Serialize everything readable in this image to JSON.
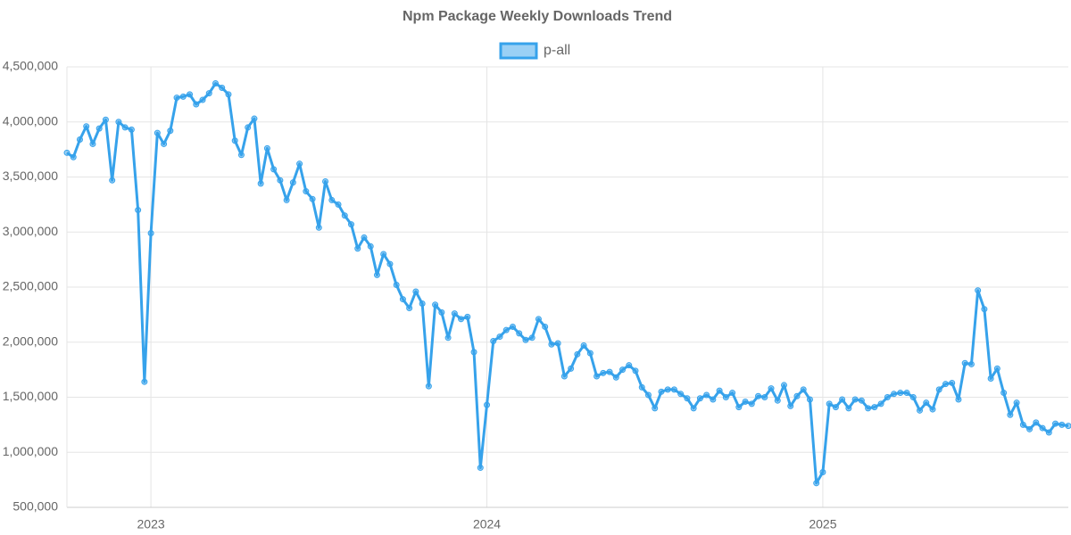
{
  "chart_data": {
    "type": "line",
    "title": "Npm Package Weekly Downloads Trend",
    "categories": [
      null,
      null,
      null,
      null,
      null,
      null,
      null,
      null,
      null,
      null,
      null,
      null,
      null,
      "2023",
      null,
      null,
      null,
      null,
      null,
      null,
      null,
      null,
      null,
      null,
      null,
      null,
      null,
      null,
      null,
      null,
      null,
      null,
      null,
      null,
      null,
      null,
      null,
      null,
      null,
      null,
      null,
      null,
      null,
      null,
      null,
      null,
      null,
      null,
      null,
      null,
      null,
      null,
      null,
      null,
      null,
      null,
      null,
      null,
      null,
      null,
      null,
      null,
      null,
      null,
      null,
      "2024",
      null,
      null,
      null,
      null,
      null,
      null,
      null,
      null,
      null,
      null,
      null,
      null,
      null,
      null,
      null,
      null,
      null,
      null,
      null,
      null,
      null,
      null,
      null,
      null,
      null,
      null,
      null,
      null,
      null,
      null,
      null,
      null,
      null,
      null,
      null,
      null,
      null,
      null,
      null,
      null,
      null,
      null,
      null,
      null,
      null,
      null,
      null,
      null,
      null,
      null,
      null,
      "2025",
      null,
      null,
      null,
      null,
      null,
      null,
      null,
      null,
      null,
      null,
      null,
      null,
      null,
      null,
      null,
      null,
      null,
      null,
      null,
      null,
      null,
      null,
      null,
      null,
      null,
      null,
      null,
      null,
      null,
      null,
      null,
      null,
      null,
      null,
      null,
      null,
      null,
      null
    ],
    "series": [
      {
        "name": "p-all",
        "color": "#36a2eb",
        "values": [
          3720000,
          3680000,
          3840000,
          3960000,
          3800000,
          3940000,
          4020000,
          3470000,
          4000000,
          3950000,
          3930000,
          3200000,
          1640000,
          2990000,
          3900000,
          3800000,
          3920000,
          4220000,
          4230000,
          4250000,
          4160000,
          4200000,
          4260000,
          4350000,
          4310000,
          4250000,
          3830000,
          3700000,
          3950000,
          4030000,
          3440000,
          3760000,
          3570000,
          3470000,
          3290000,
          3450000,
          3620000,
          3370000,
          3300000,
          3040000,
          3460000,
          3290000,
          3250000,
          3150000,
          3070000,
          2850000,
          2950000,
          2870000,
          2610000,
          2800000,
          2710000,
          2520000,
          2390000,
          2310000,
          2460000,
          2350000,
          1600000,
          2340000,
          2270000,
          2040000,
          2260000,
          2210000,
          2230000,
          1910000,
          860000,
          1430000,
          2010000,
          2050000,
          2110000,
          2140000,
          2080000,
          2020000,
          2040000,
          2210000,
          2140000,
          1980000,
          1990000,
          1690000,
          1760000,
          1890000,
          1970000,
          1900000,
          1690000,
          1720000,
          1730000,
          1680000,
          1750000,
          1790000,
          1740000,
          1590000,
          1520000,
          1400000,
          1550000,
          1570000,
          1570000,
          1530000,
          1490000,
          1400000,
          1490000,
          1520000,
          1480000,
          1560000,
          1500000,
          1540000,
          1410000,
          1460000,
          1440000,
          1510000,
          1500000,
          1580000,
          1470000,
          1610000,
          1420000,
          1510000,
          1570000,
          1480000,
          720000,
          820000,
          1440000,
          1410000,
          1480000,
          1400000,
          1480000,
          1470000,
          1400000,
          1410000,
          1440000,
          1500000,
          1530000,
          1540000,
          1540000,
          1500000,
          1380000,
          1450000,
          1390000,
          1570000,
          1620000,
          1630000,
          1480000,
          1810000,
          1800000,
          2470000,
          2300000,
          1670000,
          1760000,
          1540000,
          1340000,
          1450000,
          1250000,
          1210000,
          1270000,
          1220000,
          1180000,
          1260000,
          1250000,
          1240000
        ]
      }
    ],
    "ylim": [
      500000,
      4500000
    ],
    "yticks": [
      {
        "value": 500000,
        "label": "500,000"
      },
      {
        "value": 1000000,
        "label": "1,000,000"
      },
      {
        "value": 1500000,
        "label": "1,500,000"
      },
      {
        "value": 2000000,
        "label": "2,000,000"
      },
      {
        "value": 2500000,
        "label": "2,500,000"
      },
      {
        "value": 3000000,
        "label": "3,000,000"
      },
      {
        "value": 3500000,
        "label": "3,500,000"
      },
      {
        "value": 4000000,
        "label": "4,000,000"
      },
      {
        "value": 4500000,
        "label": "4,500,000"
      }
    ],
    "grid": true,
    "legend": "top"
  }
}
